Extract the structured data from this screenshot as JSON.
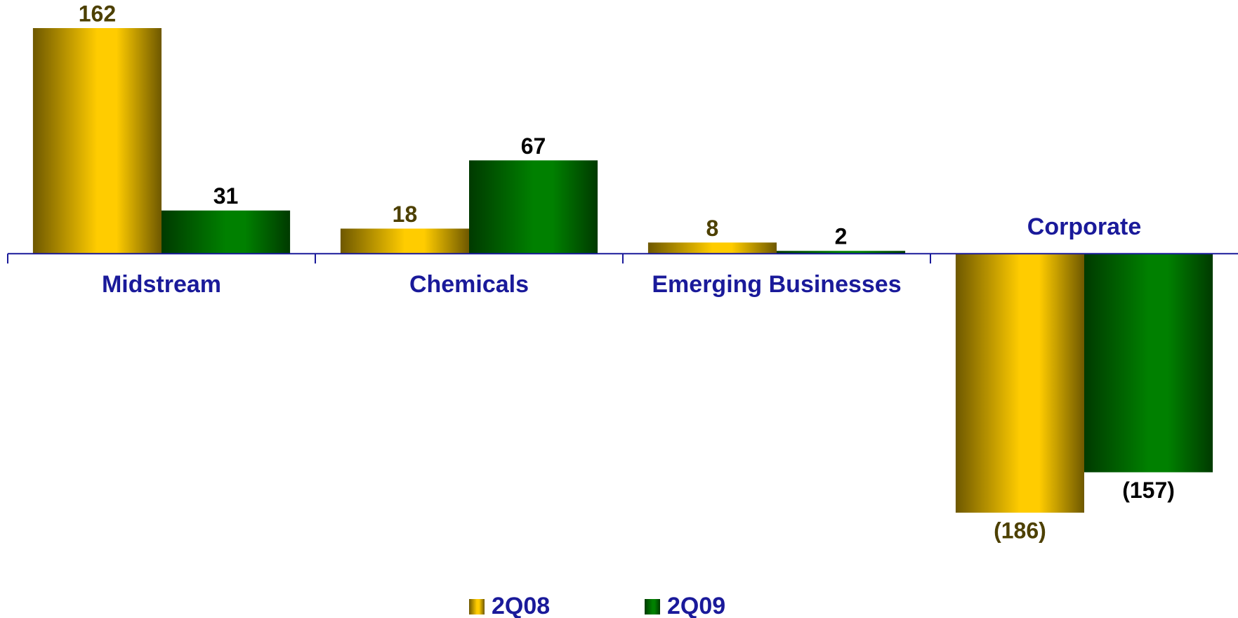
{
  "chart_data": {
    "type": "bar",
    "categories": [
      "Midstream",
      "Chemicals",
      "Emerging Businesses",
      "Corporate"
    ],
    "series": [
      {
        "name": "2Q08",
        "color": "#ffcc00",
        "values": [
          162,
          18,
          8,
          -186
        ],
        "value_labels": [
          "162",
          "18",
          "8",
          "(186)"
        ]
      },
      {
        "name": "2Q09",
        "color": "#008000",
        "values": [
          31,
          67,
          2,
          -157
        ],
        "value_labels": [
          "31",
          "67",
          "2",
          "(157)"
        ]
      }
    ],
    "legend": "bottom"
  }
}
